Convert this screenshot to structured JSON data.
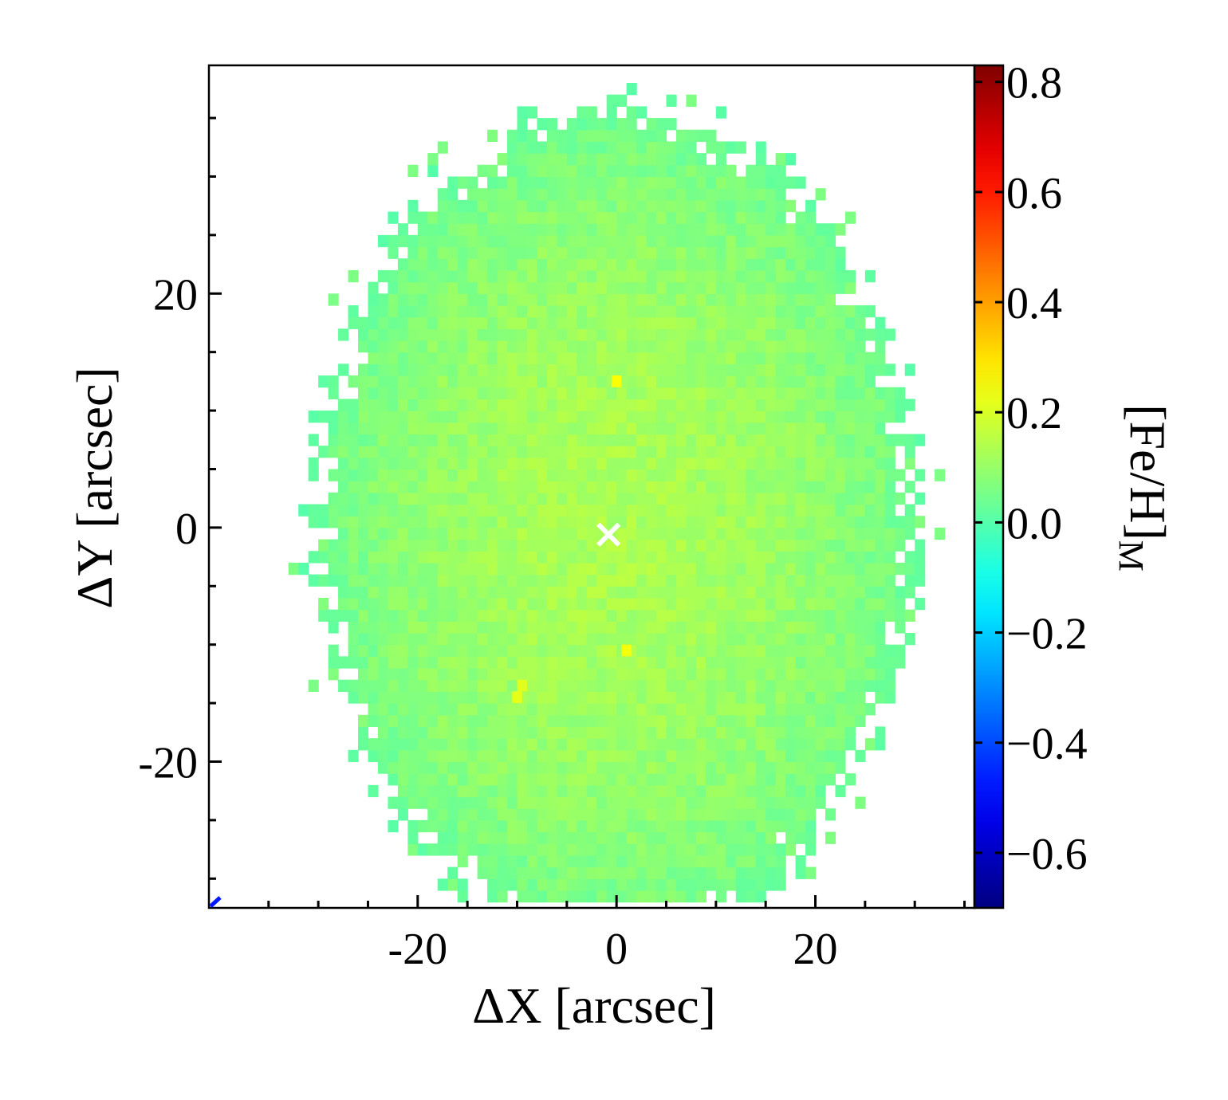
{
  "chart_data": {
    "type": "heatmap",
    "title": "",
    "xlabel": "ΔX [arcsec]",
    "ylabel": "ΔY [arcsec]",
    "colorbar_label": "[Fe/H]",
    "colorbar_label_sub": "M",
    "xlim": [
      -41,
      36
    ],
    "ylim": [
      -32.5,
      39.5
    ],
    "x_ticks": [
      -20,
      0,
      20
    ],
    "y_ticks": [
      -20,
      0,
      20
    ],
    "x_tick_labels": [
      "-20",
      "0",
      "20"
    ],
    "y_tick_labels": [
      "-20",
      "0",
      "20"
    ],
    "colorbar_range": [
      -0.7,
      0.83
    ],
    "colorbar_ticks": [
      -0.6,
      -0.4,
      -0.2,
      0.0,
      0.2,
      0.4,
      0.6,
      0.8
    ],
    "colorbar_tick_labels": [
      "−0.6",
      "−0.4",
      "−0.2",
      "0.0",
      "0.2",
      "0.4",
      "0.6",
      "0.8"
    ],
    "colormap": "jet",
    "pixel_size_arcsec": 1.0,
    "map_extent": {
      "semi_axis_x": 32,
      "semi_axis_y": 38
    },
    "value_at_center": 0.13,
    "value_at_edge": 0.03,
    "center_marker": {
      "x": -1,
      "y": -1,
      "symbol": "×",
      "color": "#ffffff"
    },
    "outlier_pixels": [
      {
        "x": 0,
        "y": 12.5,
        "value": 0.25
      },
      {
        "x": 1,
        "y": -10.5,
        "value": 0.24
      },
      {
        "x": -10,
        "y": -14.5,
        "value": 0.22
      },
      {
        "x": -9.5,
        "y": -13.5,
        "value": 0.21
      }
    ]
  }
}
